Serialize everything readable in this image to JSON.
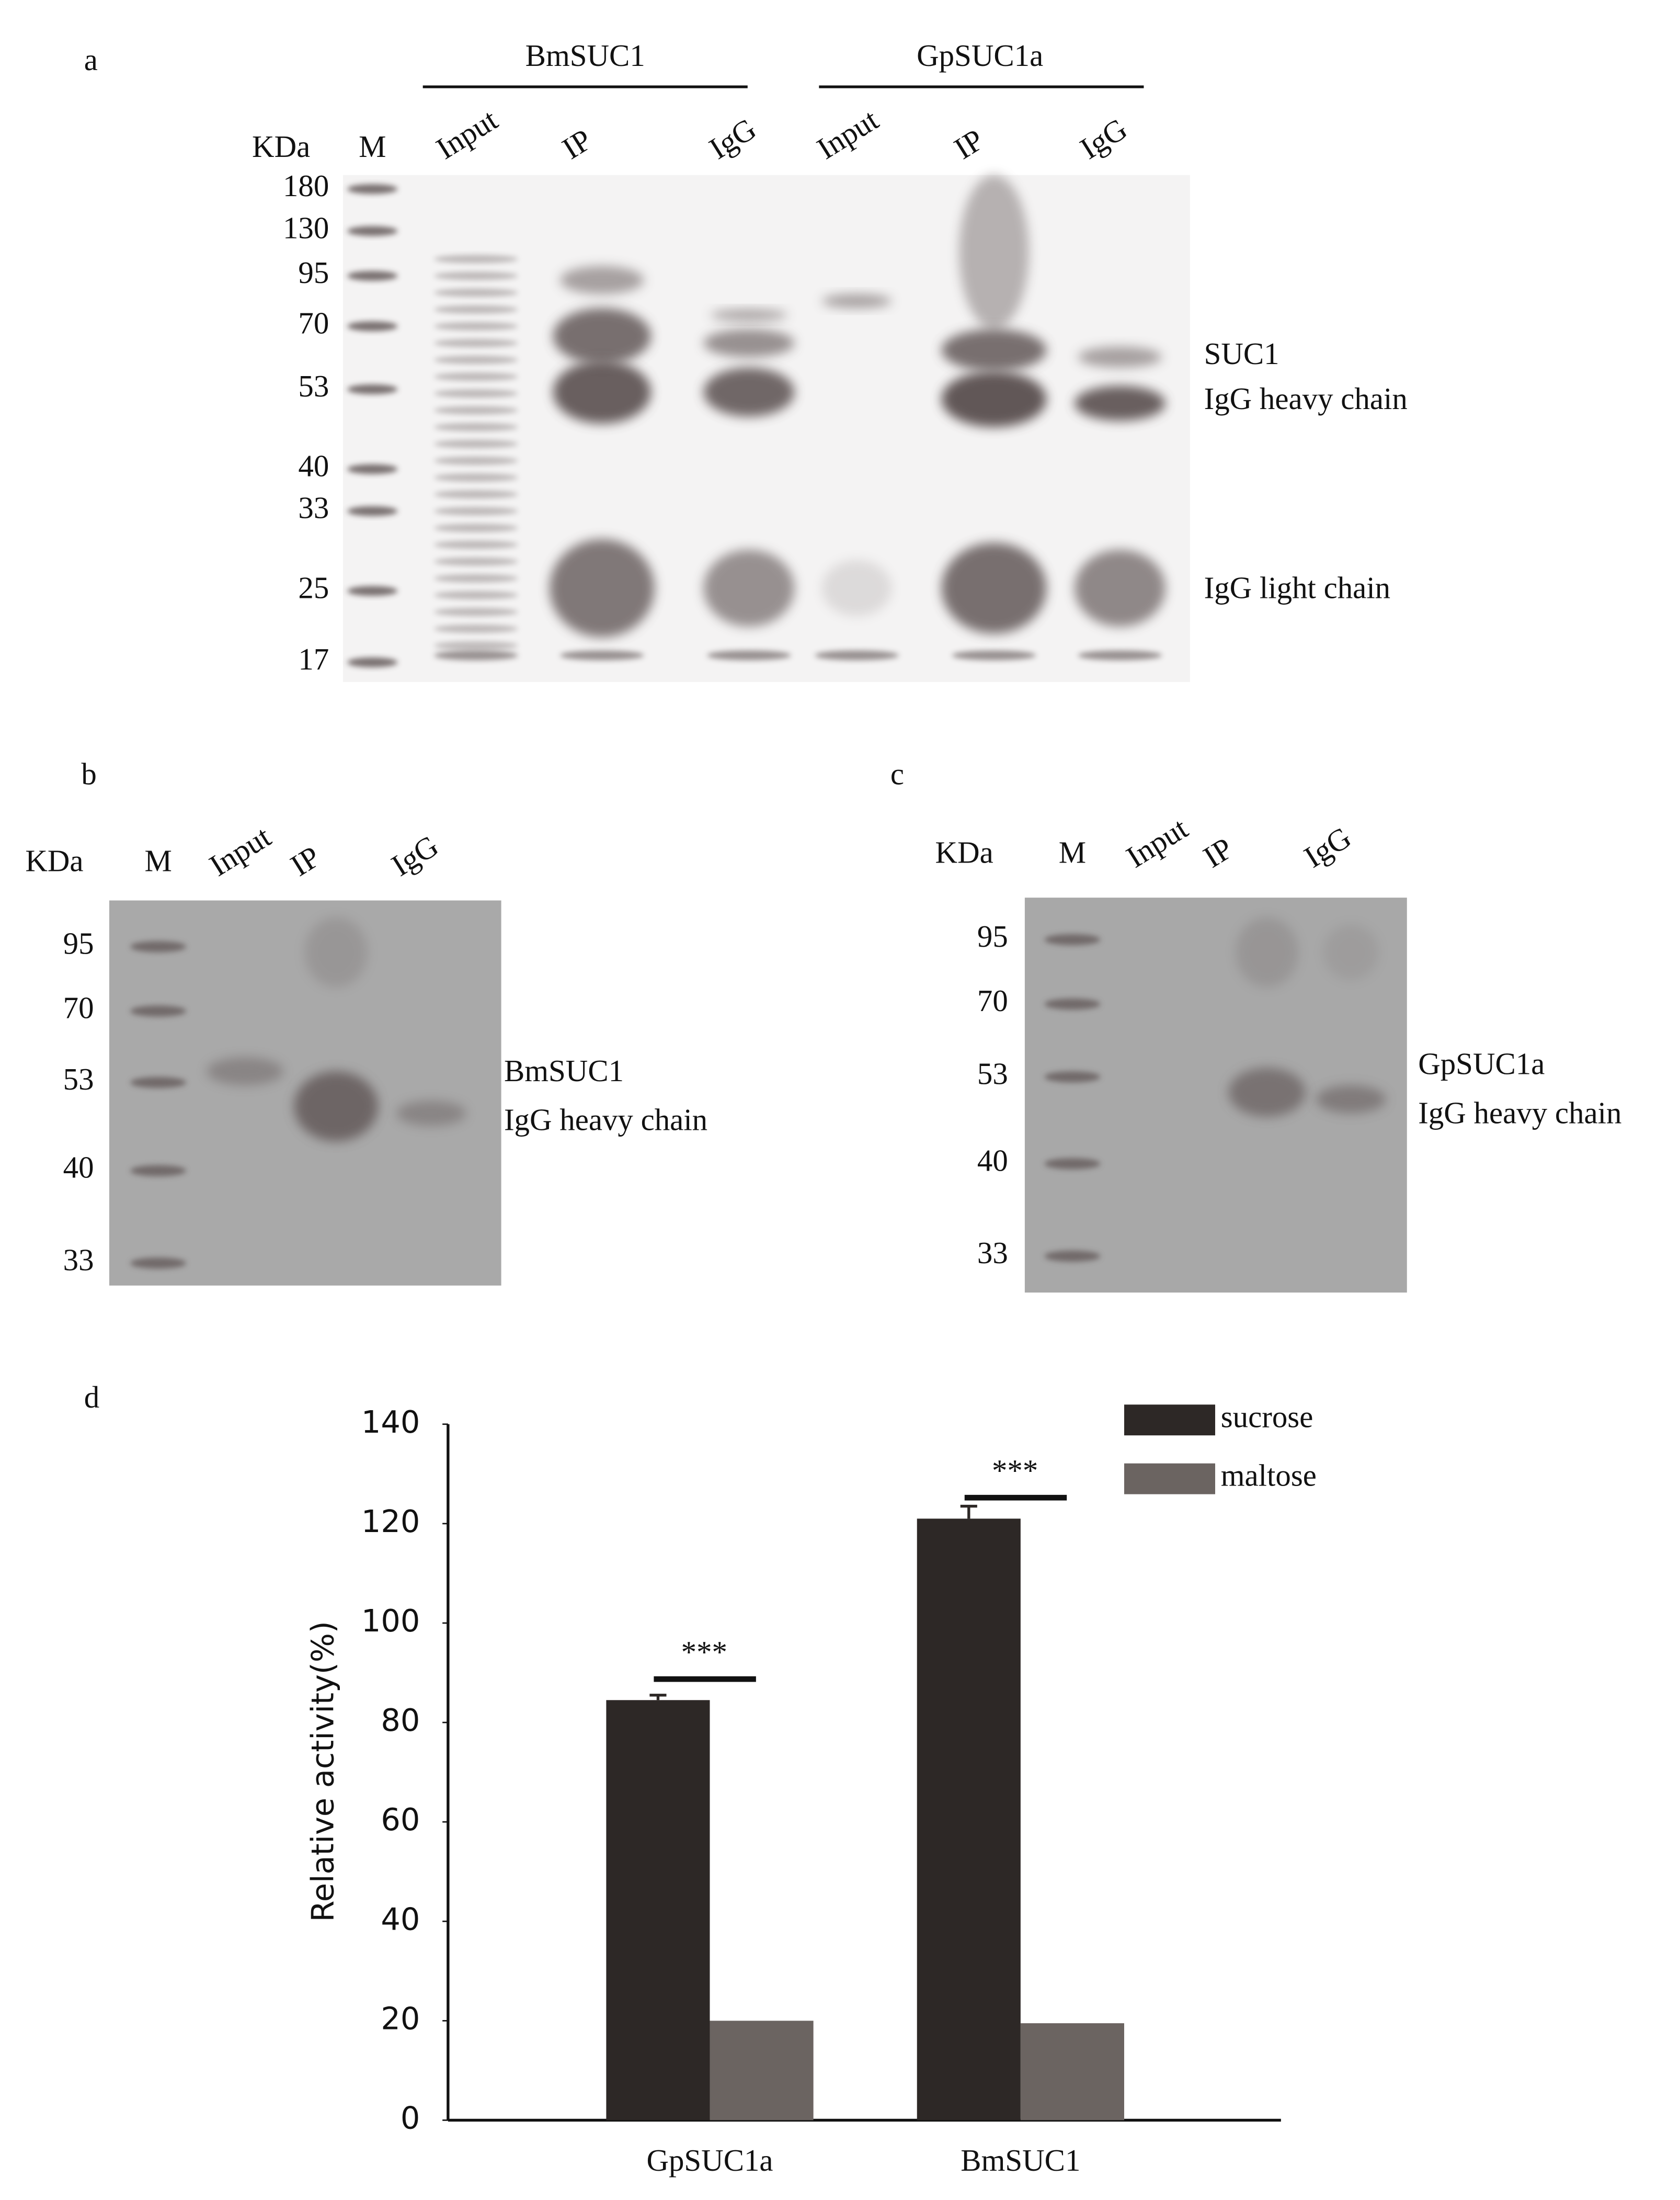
{
  "panel_a": {
    "letter": "a",
    "unit": "KDa",
    "groups": [
      "BmSUC1",
      "GpSUC1a"
    ],
    "lanes": [
      "M",
      "Input",
      "IP",
      "IgG",
      "Input",
      "IP",
      "IgG"
    ],
    "markers": [
      "180",
      "130",
      "95",
      "70",
      "53",
      "40",
      "33",
      "25",
      "17"
    ],
    "band_labels": [
      "SUC1",
      "IgG heavy chain",
      "IgG light chain"
    ]
  },
  "panel_b": {
    "letter": "b",
    "unit": "KDa",
    "lanes": [
      "M",
      "Input",
      "IP",
      "IgG"
    ],
    "markers": [
      "95",
      "70",
      "53",
      "40",
      "33"
    ],
    "band_labels": [
      "BmSUC1",
      "IgG heavy chain"
    ]
  },
  "panel_c": {
    "letter": "c",
    "unit": "KDa",
    "lanes": [
      "M",
      "Input",
      "IP",
      "IgG"
    ],
    "markers": [
      "95",
      "70",
      "53",
      "40",
      "33"
    ],
    "band_labels": [
      "GpSUC1a",
      "IgG heavy chain"
    ]
  },
  "chart_data": {
    "type": "bar",
    "letter": "d",
    "y_label": "Relative activity(%)",
    "categories": [
      "GpSUC1a",
      "BmSUC1"
    ],
    "series": [
      {
        "name": "sucrose",
        "color": "#2d2826",
        "values": [
          84.5,
          121
        ],
        "errors": [
          1,
          2.5
        ]
      },
      {
        "name": "maltose",
        "color": "#6b6461",
        "values": [
          20,
          19.5
        ]
      }
    ],
    "significance": [
      "***",
      "***"
    ],
    "ylim": [
      0,
      140
    ],
    "yticks": [
      0,
      20,
      40,
      60,
      80,
      100,
      120,
      140
    ],
    "grid": false,
    "legend": "upper right"
  }
}
